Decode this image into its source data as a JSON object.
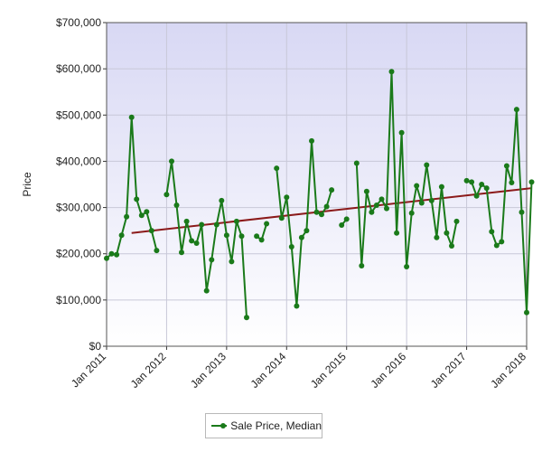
{
  "chart_data": {
    "type": "line",
    "ylabel": "Price",
    "ylim": [
      0,
      700000
    ],
    "ytick_labels": [
      "$0",
      "$100,000",
      "$200,000",
      "$300,000",
      "$400,000",
      "$500,000",
      "$600,000",
      "$700,000"
    ],
    "yticks": [
      0,
      100000,
      200000,
      300000,
      400000,
      500000,
      600000,
      700000
    ],
    "xtick_labels": [
      "Jan 2011",
      "Jan 2012",
      "Jan 2013",
      "Jan 2014",
      "Jan 2015",
      "Jan 2016",
      "Jan 2017",
      "Jan 2018"
    ],
    "xlim": [
      "2011-01",
      "2018-01"
    ],
    "grid": true,
    "legend_position": "bottom-center",
    "colors": {
      "series": "#1a7a1a",
      "trend": "#8b1a1a",
      "plot_background_top": "#d8d8f4",
      "plot_background_bottom": "#ffffff",
      "grid": "#c8c8d8"
    },
    "series": [
      {
        "name": "Sale Price, Median",
        "points": [
          [
            "2011-01",
            190000
          ],
          [
            "2011-02",
            200000
          ],
          [
            "2011-03",
            198000
          ],
          [
            "2011-04",
            240000
          ],
          [
            "2011-05",
            280000
          ],
          [
            "2011-06",
            495000
          ],
          [
            "2011-07",
            318000
          ],
          [
            "2011-08",
            283000
          ],
          [
            "2011-09",
            291000
          ],
          [
            "2011-10",
            250000
          ],
          [
            "2011-11",
            207000
          ],
          [
            "2011-12",
            null
          ],
          [
            "2012-01",
            328000
          ],
          [
            "2012-02",
            400000
          ],
          [
            "2012-03",
            305000
          ],
          [
            "2012-04",
            203000
          ],
          [
            "2012-05",
            270000
          ],
          [
            "2012-06",
            228000
          ],
          [
            "2012-07",
            223000
          ],
          [
            "2012-08",
            263000
          ],
          [
            "2012-09",
            120000
          ],
          [
            "2012-10",
            187000
          ],
          [
            "2012-11",
            263000
          ],
          [
            "2012-12",
            315000
          ],
          [
            "2013-01",
            240000
          ],
          [
            "2013-02",
            183000
          ],
          [
            "2013-03",
            270000
          ],
          [
            "2013-04",
            238000
          ],
          [
            "2013-05",
            62000
          ],
          [
            "2013-06",
            null
          ],
          [
            "2013-07",
            238000
          ],
          [
            "2013-08",
            230000
          ],
          [
            "2013-09",
            265000
          ],
          [
            "2013-10",
            null
          ],
          [
            "2013-11",
            385000
          ],
          [
            "2013-12",
            277000
          ],
          [
            "2014-01",
            322000
          ],
          [
            "2014-02",
            215000
          ],
          [
            "2014-03",
            87000
          ],
          [
            "2014-04",
            235000
          ],
          [
            "2014-05",
            250000
          ],
          [
            "2014-06",
            444000
          ],
          [
            "2014-07",
            290000
          ],
          [
            "2014-08",
            285000
          ],
          [
            "2014-09",
            302000
          ],
          [
            "2014-10",
            338000
          ],
          [
            "2014-11",
            null
          ],
          [
            "2014-12",
            262000
          ],
          [
            "2015-01",
            275000
          ],
          [
            "2015-02",
            null
          ],
          [
            "2015-03",
            396000
          ],
          [
            "2015-04",
            174000
          ],
          [
            "2015-05",
            335000
          ],
          [
            "2015-06",
            290000
          ],
          [
            "2015-07",
            305000
          ],
          [
            "2015-08",
            318000
          ],
          [
            "2015-09",
            298000
          ],
          [
            "2015-10",
            594000
          ],
          [
            "2015-11",
            245000
          ],
          [
            "2015-12",
            462000
          ],
          [
            "2016-01",
            172000
          ],
          [
            "2016-02",
            288000
          ],
          [
            "2016-03",
            347000
          ],
          [
            "2016-04",
            310000
          ],
          [
            "2016-05",
            392000
          ],
          [
            "2016-06",
            315000
          ],
          [
            "2016-07",
            235000
          ],
          [
            "2016-08",
            345000
          ],
          [
            "2016-09",
            245000
          ],
          [
            "2016-10",
            217000
          ],
          [
            "2016-11",
            270000
          ],
          [
            "2016-12",
            null
          ],
          [
            "2017-01",
            358000
          ],
          [
            "2017-02",
            355000
          ],
          [
            "2017-03",
            325000
          ],
          [
            "2017-04",
            350000
          ],
          [
            "2017-05",
            342000
          ],
          [
            "2017-06",
            248000
          ],
          [
            "2017-07",
            218000
          ],
          [
            "2017-08",
            226000
          ],
          [
            "2017-09",
            390000
          ],
          [
            "2017-10",
            354000
          ],
          [
            "2017-11",
            512000
          ],
          [
            "2017-12",
            290000
          ],
          [
            "2018-01",
            73000
          ],
          [
            "2018-02",
            355000
          ]
        ]
      }
    ],
    "trendline": {
      "start": [
        "2011-06",
        245000
      ],
      "end": [
        "2018-02",
        342000
      ]
    }
  }
}
